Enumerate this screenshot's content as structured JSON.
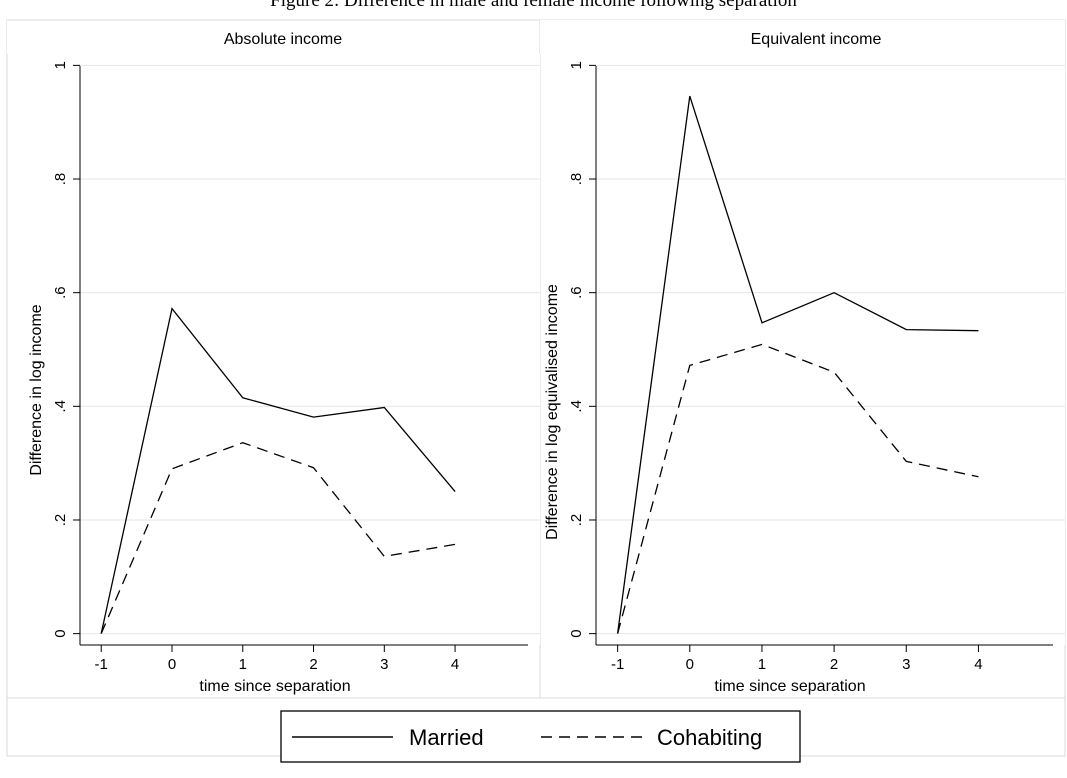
{
  "figure_title": "Figure 2: Difference in male and female income following separation",
  "legend": [
    {
      "label": "Married",
      "dash": "solid"
    },
    {
      "label": "Cohabiting",
      "dash": "dashed"
    }
  ],
  "chart_data": [
    {
      "type": "line",
      "title": "Absolute income",
      "xlabel": "time since separation",
      "ylabel": "Difference in log income",
      "x": [
        -1,
        0,
        1,
        2,
        3,
        4
      ],
      "xticks": [
        "-1",
        "0",
        "1",
        "2",
        "3",
        "4"
      ],
      "yticks": [
        "0",
        ".2",
        ".4",
        ".6",
        ".8",
        "1"
      ],
      "xlim": [
        -1.3,
        5.2
      ],
      "ylim": [
        -0.02,
        1.02
      ],
      "grid": true,
      "series": [
        {
          "name": "Married",
          "values": [
            0,
            0.572,
            0.415,
            0.381,
            0.398,
            0.25
          ]
        },
        {
          "name": "Cohabiting",
          "values": [
            0,
            0.29,
            0.336,
            0.292,
            0.136,
            0.157
          ]
        }
      ]
    },
    {
      "type": "line",
      "title": "Equivalent income",
      "xlabel": "time since separation",
      "ylabel": "Difference in log equivalised income",
      "x": [
        -1,
        0,
        1,
        2,
        3,
        4
      ],
      "xticks": [
        "-1",
        "0",
        "1",
        "2",
        "3",
        "4"
      ],
      "yticks": [
        "0",
        ".2",
        ".4",
        ".6",
        ".8",
        "1"
      ],
      "xlim": [
        -1.3,
        5.2
      ],
      "ylim": [
        -0.02,
        1.02
      ],
      "grid": true,
      "series": [
        {
          "name": "Married",
          "values": [
            0,
            0.946,
            0.547,
            0.6,
            0.535,
            0.533
          ]
        },
        {
          "name": "Cohabiting",
          "values": [
            0,
            0.472,
            0.509,
            0.46,
            0.303,
            0.276
          ]
        }
      ]
    }
  ]
}
